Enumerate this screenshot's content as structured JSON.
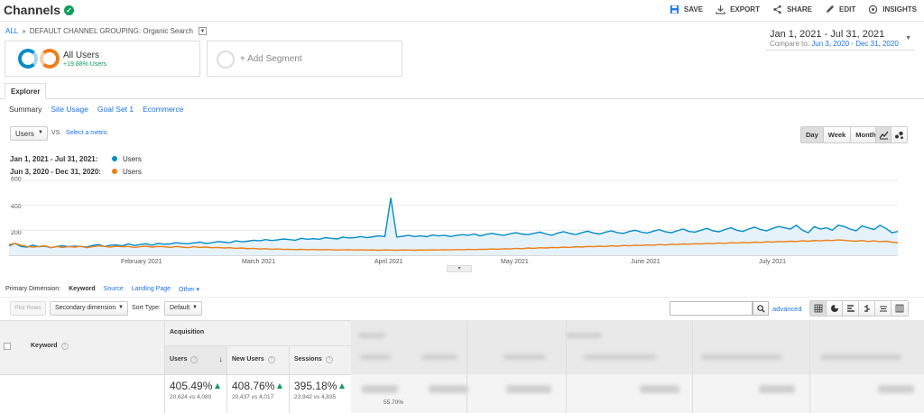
{
  "header": {
    "title": "Channels",
    "actions": [
      {
        "label": "SAVE",
        "icon": "save-icon"
      },
      {
        "label": "EXPORT",
        "icon": "export-icon"
      },
      {
        "label": "SHARE",
        "icon": "share-icon"
      },
      {
        "label": "EDIT",
        "icon": "pencil-icon"
      },
      {
        "label": "INSIGHTS",
        "icon": "insights-icon"
      }
    ]
  },
  "breadcrumb": {
    "all": "ALL",
    "sep": "»",
    "grouping": "DEFAULT CHANNEL GROUPING: Organic Search"
  },
  "date_range": {
    "main": "Jan 1, 2021 - Jul 31, 2021",
    "compare_label": "Compare to:",
    "compare_value": "Jun 3, 2020 - Dec 31, 2020"
  },
  "segments": {
    "primary_name": "All Users",
    "primary_change": "+19.88% Users",
    "add_label": "+ Add Segment"
  },
  "tabs": {
    "explorer": "Explorer",
    "subtabs": [
      "Summary",
      "Site Usage",
      "Goal Set 1",
      "Ecommerce"
    ]
  },
  "controls": {
    "metric": "Users",
    "vs": "VS.",
    "select_metric": "Select a metric",
    "periods": [
      "Day",
      "Week",
      "Month"
    ],
    "active_period": "Day"
  },
  "legend": [
    {
      "period": "Jan 1, 2021 - Jul 31, 2021:",
      "name": "Users",
      "color": "#058dc7"
    },
    {
      "period": "Jun 3, 2020 - Dec 31, 2020:",
      "name": "Users",
      "color": "#ed7e17"
    }
  ],
  "chart_data": {
    "type": "line",
    "y_ticks": [
      "600",
      "400",
      "200"
    ],
    "ylim": [
      0,
      600
    ],
    "x_labels": [
      "February 2021",
      "March 2021",
      "April 2021",
      "May 2021",
      "June 2021",
      "July 2021"
    ],
    "series": [
      {
        "name": "Users",
        "color": "#058dc7",
        "values": [
          75,
          95,
          70,
          65,
          80,
          68,
          72,
          60,
          70,
          75,
          68,
          72,
          70,
          65,
          78,
          85,
          70,
          80,
          82,
          75,
          90,
          78,
          85,
          92,
          80,
          95,
          88,
          90,
          100,
          95,
          92,
          98,
          105,
          95,
          100,
          110,
          105,
          100,
          115,
          108,
          112,
          120,
          115,
          125,
          118,
          122,
          130,
          125,
          120,
          135,
          128,
          132,
          128,
          140,
          135,
          130,
          145,
          138,
          142,
          150,
          140,
          148,
          155,
          150,
          460,
          145,
          152,
          160,
          150,
          155,
          148,
          162,
          155,
          160,
          150,
          158,
          165,
          160,
          170,
          155,
          168,
          175,
          165,
          160,
          172,
          180,
          170,
          165,
          175,
          185,
          170,
          160,
          178,
          188,
          175,
          165,
          180,
          192,
          178,
          170,
          185,
          195,
          180,
          175,
          190,
          200,
          185,
          178,
          192,
          205,
          188,
          180,
          195,
          210,
          190,
          185,
          200,
          215,
          195,
          188,
          205,
          220,
          200,
          190,
          210,
          225,
          205,
          195,
          215,
          230,
          220,
          210,
          240,
          200,
          180,
          230,
          210,
          220,
          200,
          240,
          230,
          210,
          195,
          235,
          220,
          205,
          240,
          215,
          180,
          190
        ]
      },
      {
        "name": "Users",
        "color": "#ed7e17",
        "values": [
          85,
          95,
          80,
          70,
          65,
          70,
          75,
          60,
          70,
          62,
          70,
          65,
          72,
          60,
          68,
          75,
          70,
          65,
          72,
          68,
          70,
          62,
          68,
          72,
          65,
          70,
          68,
          62,
          70,
          65,
          60,
          68,
          62,
          65,
          60,
          62,
          58,
          60,
          55,
          58,
          52,
          55,
          50,
          52,
          48,
          50,
          46,
          48,
          45,
          47,
          44,
          46,
          43,
          45,
          44,
          42,
          43,
          44,
          42,
          43,
          41,
          42,
          40,
          42,
          41,
          40,
          42,
          41,
          40,
          42,
          41,
          43,
          42,
          44,
          43,
          45,
          44,
          46,
          45,
          48,
          47,
          50,
          48,
          52,
          50,
          55,
          52,
          58,
          55,
          60,
          58,
          62,
          60,
          65,
          62,
          68,
          65,
          70,
          68,
          72,
          70,
          75,
          72,
          78,
          75,
          80,
          78,
          82,
          80,
          85,
          82,
          88,
          85,
          90,
          88,
          92,
          90,
          95,
          92,
          98,
          95,
          100,
          98,
          102,
          100,
          105,
          102,
          108,
          105,
          110,
          108,
          112,
          110,
          115,
          112,
          118,
          115,
          120,
          118,
          122,
          120,
          115,
          112,
          118,
          110,
          115,
          108,
          112,
          105,
          100
        ]
      }
    ],
    "grid": true
  },
  "primary_dimension": {
    "label": "Primary Dimension:",
    "options": [
      "Keyword",
      "Source",
      "Landing Page",
      "Other"
    ],
    "active": "Keyword"
  },
  "table_controls": {
    "plot_rows": "Plot Rows",
    "secondary_dimension": "Secondary dimension",
    "sort_type_label": "Sort Type:",
    "sort_type_value": "Default",
    "advanced": "advanced"
  },
  "table": {
    "keyword_header": "Keyword",
    "group_header": "Acquisition",
    "columns": [
      {
        "header": "Users",
        "pct": "405.49%",
        "sub": "20,624 vs 4,080"
      },
      {
        "header": "New Users",
        "pct": "408.76%",
        "sub": "20,437 vs 4,017"
      },
      {
        "header": "Sessions",
        "pct": "395.18%",
        "sub": "23,942 vs 4,835"
      }
    ],
    "footer_value": "55.70%"
  }
}
